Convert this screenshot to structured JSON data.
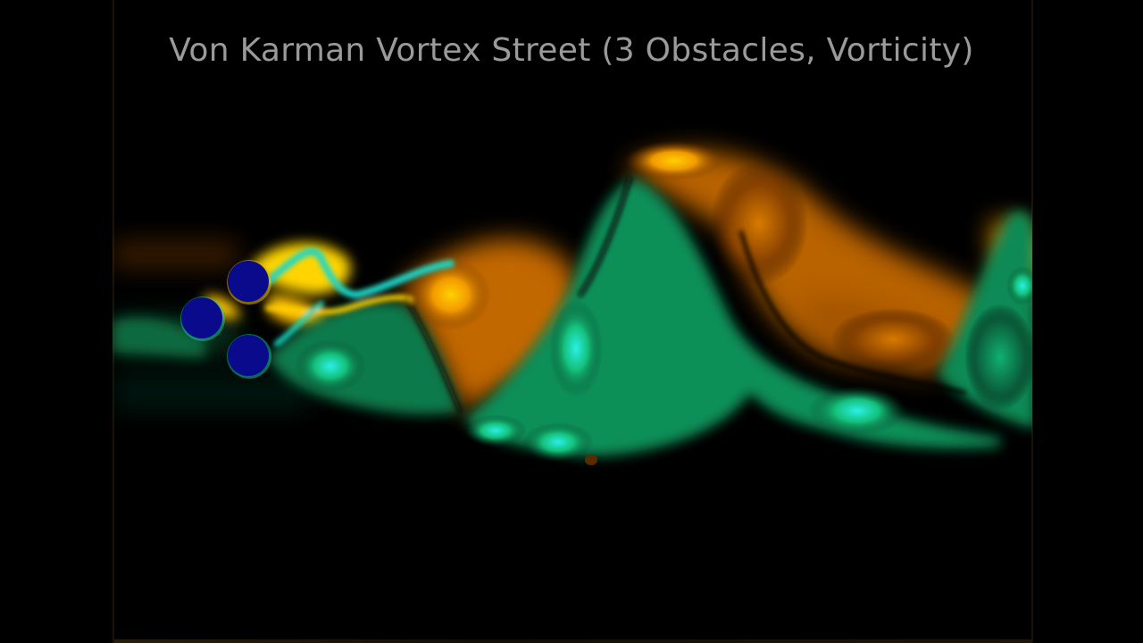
{
  "title": "Von Karman Vortex Street (3 Obstacles, Vorticity)",
  "colors": {
    "background": "#000000",
    "positive_vorticity": "#f0a400",
    "positive_core": "#ffd400",
    "negative_vorticity": "#14c47a",
    "negative_core": "#1ef0e0",
    "obstacle_fill": "#0a0a8c",
    "title_text": "#9a9a9a"
  },
  "obstacles": [
    {
      "name": "upper-obstacle"
    },
    {
      "name": "front-obstacle"
    },
    {
      "name": "lower-obstacle"
    }
  ]
}
